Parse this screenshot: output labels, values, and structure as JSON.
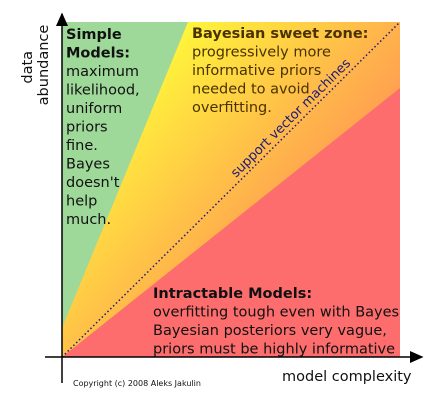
{
  "axes": {
    "y_label": [
      "data",
      "abundance"
    ],
    "x_label": "model complexity"
  },
  "regions": {
    "simple": {
      "title": "Simple Models:",
      "lines": [
        "maximum",
        "likelihood,",
        "uniform",
        "priors",
        "fine.",
        "Bayes",
        "doesn't",
        "help",
        "much."
      ]
    },
    "sweet": {
      "title": "Bayesian sweet zone:",
      "lines": [
        "progressively more",
        "informative priors",
        "needed to avoid",
        "overfitting."
      ]
    },
    "intractable": {
      "title": "Intractable Models:",
      "lines": [
        "overfitting tough even with Bayes",
        "Bayesian posteriors very vague,",
        "priors must be highly informative"
      ]
    }
  },
  "divider_label": "support vector machines",
  "copyright": "Copyright (c) 2008 Aleks Jakulin"
}
